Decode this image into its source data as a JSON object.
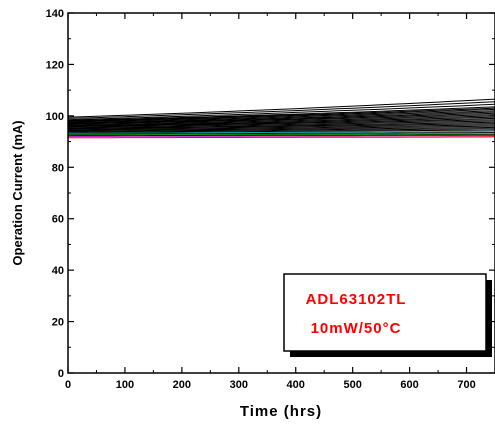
{
  "chart_data": {
    "type": "line",
    "title": "",
    "xlabel": "Time (hrs)",
    "ylabel": "Operation Current (mA)",
    "xlim": [
      0,
      750
    ],
    "ylim": [
      0,
      140
    ],
    "x_ticks": [
      "0",
      "100",
      "200",
      "300",
      "400",
      "500",
      "600",
      "700"
    ],
    "y_ticks": [
      "0",
      "20",
      "40",
      "60",
      "80",
      "100",
      "120",
      "140"
    ],
    "grid": false,
    "legend_box": {
      "lines": [
        "ADL63102TL",
        "10mW/50°C"
      ],
      "text_color": "#ff0000",
      "placement": "bottom-right"
    },
    "series_start_end": [
      [
        99.5,
        106.5
      ],
      [
        99.0,
        105.5
      ],
      [
        98.5,
        104.5
      ],
      [
        98.2,
        103.5
      ],
      [
        98.0,
        103.0
      ],
      [
        97.8,
        102.5
      ],
      [
        97.5,
        102.0
      ],
      [
        97.2,
        101.5
      ],
      [
        97.0,
        101.0
      ],
      [
        96.8,
        100.5
      ],
      [
        96.5,
        100.0
      ],
      [
        96.2,
        99.5
      ],
      [
        96.0,
        99.0
      ],
      [
        95.8,
        98.5
      ],
      [
        95.5,
        98.0
      ],
      [
        95.2,
        97.5
      ],
      [
        95.0,
        97.0
      ],
      [
        94.7,
        96.5
      ],
      [
        94.4,
        96.0
      ],
      [
        94.1,
        95.5
      ],
      [
        93.8,
        95.0
      ],
      [
        93.5,
        94.5
      ],
      [
        93.2,
        94.0
      ],
      [
        92.9,
        93.5
      ],
      [
        92.6,
        93.0
      ],
      [
        92.3,
        92.6
      ],
      [
        92.0,
        92.3
      ],
      [
        91.5,
        91.8
      ]
    ],
    "series_colors": [
      "#000000",
      "#000000",
      "#000000",
      "#000000",
      "#000000",
      "#000000",
      "#000000",
      "#000000",
      "#000000",
      "#000000",
      "#000000",
      "#000000",
      "#000000",
      "#000000",
      "#000000",
      "#000000",
      "#000000",
      "#000000",
      "#000000",
      "#000000",
      "#000000",
      "#000000",
      "#00a0a0",
      "#000000",
      "#00a000",
      "#000000",
      "#c000c0",
      "#ff0000"
    ]
  }
}
